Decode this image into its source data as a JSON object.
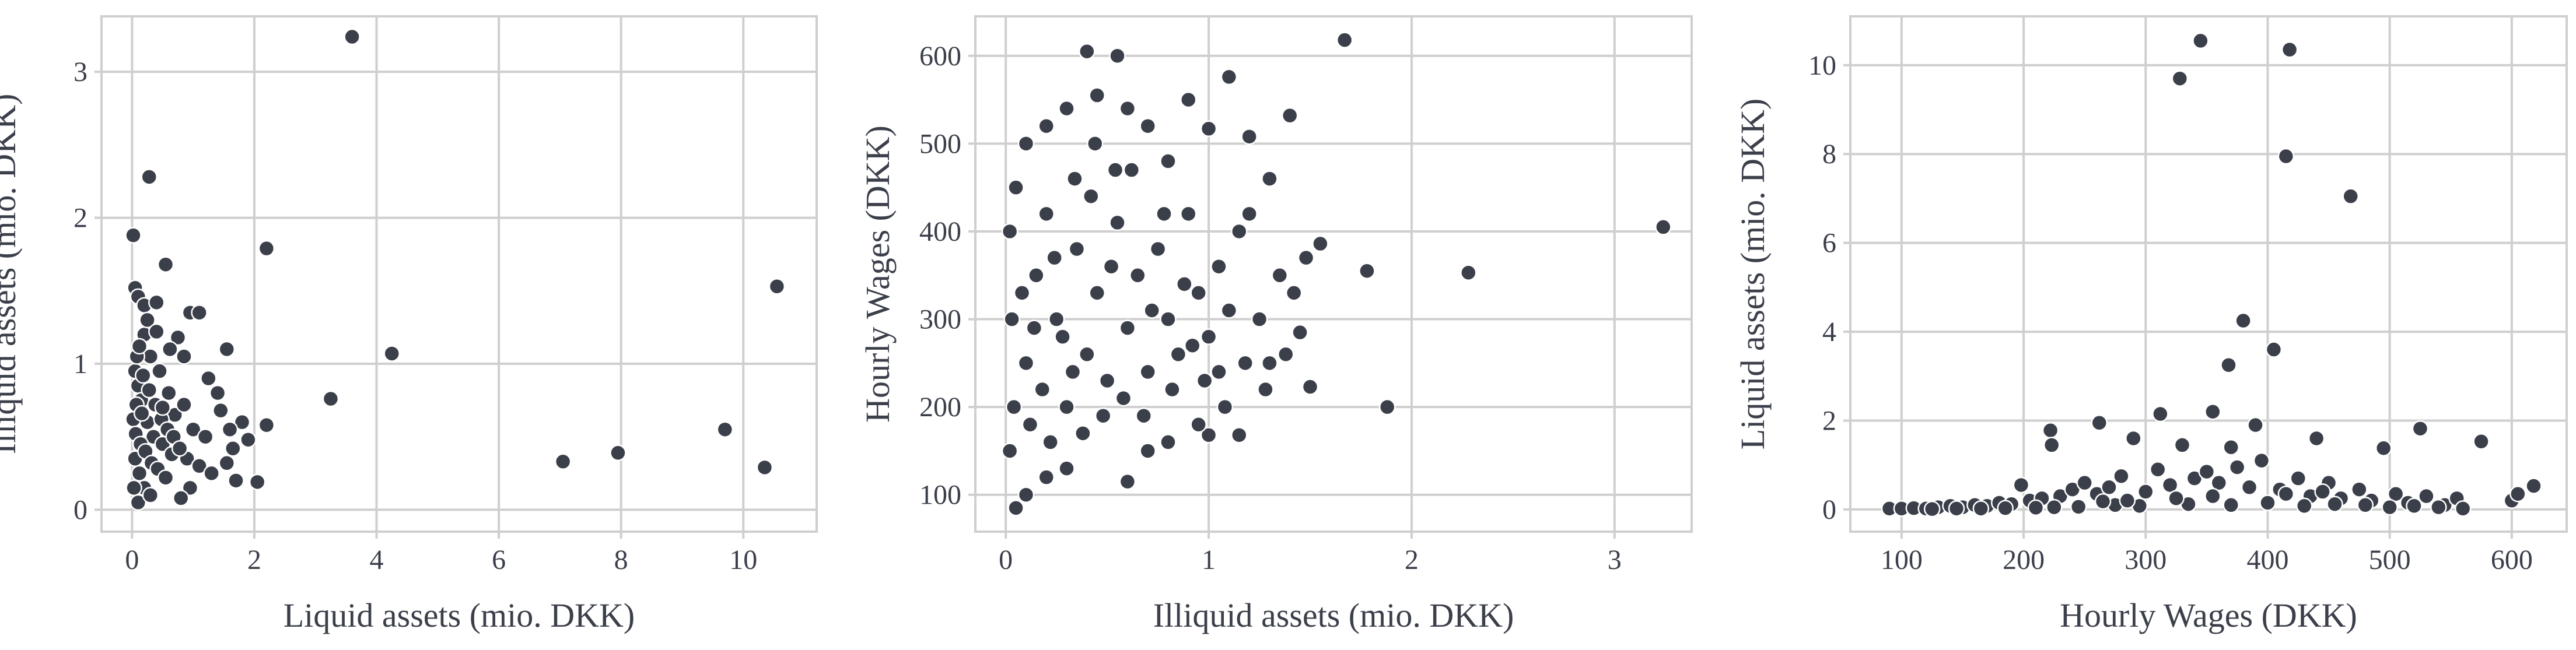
{
  "style": {
    "point_color": "#3b3f4a",
    "grid_color": "#cfcfcf"
  },
  "chart_data": [
    {
      "type": "scatter",
      "title": "",
      "xlabel": "Liquid assets (mio. DKK)",
      "ylabel": "Illiquid assets (mio. DKK)",
      "xlim": [
        -0.5,
        11.2
      ],
      "ylim": [
        -0.15,
        3.38
      ],
      "xticks": [
        0,
        2,
        4,
        6,
        8,
        10
      ],
      "yticks": [
        0,
        1,
        2,
        3
      ],
      "grid": true,
      "points": [
        [
          3.6,
          3.24
        ],
        [
          0.28,
          2.28
        ],
        [
          0.02,
          1.88
        ],
        [
          2.2,
          1.79
        ],
        [
          0.55,
          1.68
        ],
        [
          10.55,
          1.53
        ],
        [
          0.95,
          1.35
        ],
        [
          1.1,
          1.35
        ],
        [
          1.55,
          1.1
        ],
        [
          4.25,
          1.07
        ],
        [
          3.25,
          0.76
        ],
        [
          9.7,
          0.55
        ],
        [
          7.95,
          0.39
        ],
        [
          7.05,
          0.33
        ],
        [
          10.35,
          0.29
        ],
        [
          2.05,
          0.19
        ],
        [
          0.05,
          1.52
        ],
        [
          0.1,
          1.46
        ],
        [
          0.2,
          1.4
        ],
        [
          0.4,
          1.42
        ],
        [
          0.75,
          1.18
        ],
        [
          0.85,
          1.05
        ],
        [
          1.25,
          0.9
        ],
        [
          1.4,
          0.8
        ],
        [
          1.8,
          0.6
        ],
        [
          2.2,
          0.58
        ],
        [
          1.65,
          0.42
        ],
        [
          1.9,
          0.48
        ],
        [
          1.55,
          0.32
        ],
        [
          1.7,
          0.2
        ],
        [
          0.95,
          0.15
        ],
        [
          0.8,
          0.08
        ],
        [
          0.1,
          0.05
        ],
        [
          0.2,
          1.2
        ],
        [
          0.3,
          1.05
        ],
        [
          0.45,
          0.95
        ],
        [
          0.6,
          0.8
        ],
        [
          0.7,
          0.65
        ],
        [
          0.05,
          0.95
        ],
        [
          0.1,
          0.85
        ],
        [
          0.15,
          0.75
        ],
        [
          0.25,
          0.6
        ],
        [
          0.35,
          0.5
        ],
        [
          0.5,
          0.45
        ],
        [
          0.65,
          0.38
        ],
        [
          0.9,
          0.35
        ],
        [
          1.1,
          0.3
        ],
        [
          1.3,
          0.25
        ],
        [
          0.05,
          0.35
        ],
        [
          0.12,
          0.25
        ],
        [
          0.2,
          0.15
        ],
        [
          0.3,
          0.1
        ],
        [
          0.08,
          1.05
        ],
        [
          0.18,
          0.92
        ],
        [
          0.28,
          0.82
        ],
        [
          0.38,
          0.72
        ],
        [
          0.48,
          0.62
        ],
        [
          0.58,
          0.55
        ],
        [
          0.68,
          0.5
        ],
        [
          0.78,
          0.42
        ],
        [
          0.02,
          0.62
        ],
        [
          0.06,
          0.52
        ],
        [
          0.14,
          0.45
        ],
        [
          0.22,
          0.4
        ],
        [
          0.32,
          0.32
        ],
        [
          0.42,
          0.28
        ],
        [
          0.55,
          0.22
        ],
        [
          0.03,
          0.15
        ],
        [
          0.07,
          0.72
        ],
        [
          0.16,
          0.66
        ],
        [
          1.0,
          0.55
        ],
        [
          1.2,
          0.5
        ],
        [
          1.45,
          0.68
        ],
        [
          1.6,
          0.55
        ],
        [
          0.25,
          1.3
        ],
        [
          0.12,
          1.12
        ],
        [
          0.62,
          1.1
        ],
        [
          0.4,
          1.22
        ],
        [
          0.5,
          0.7
        ],
        [
          0.85,
          0.72
        ]
      ]
    },
    {
      "type": "scatter",
      "title": "",
      "xlabel": "Illiquid assets (mio. DKK)",
      "ylabel": "Hourly Wages (DKK)",
      "xlim": [
        -0.15,
        3.38
      ],
      "ylim": [
        58,
        645
      ],
      "xticks": [
        0,
        1,
        2,
        3
      ],
      "yticks": [
        100,
        200,
        300,
        400,
        500,
        600
      ],
      "grid": true,
      "points": [
        [
          1.67,
          618
        ],
        [
          0.4,
          605
        ],
        [
          0.55,
          600
        ],
        [
          1.1,
          576
        ],
        [
          0.9,
          550
        ],
        [
          1.4,
          532
        ],
        [
          1.0,
          517
        ],
        [
          1.2,
          508
        ],
        [
          3.24,
          405
        ],
        [
          1.55,
          386
        ],
        [
          1.78,
          355
        ],
        [
          2.28,
          353
        ],
        [
          1.88,
          200
        ],
        [
          1.45,
          285
        ],
        [
          1.5,
          223
        ],
        [
          1.15,
          168
        ],
        [
          1.0,
          168
        ],
        [
          0.05,
          85
        ],
        [
          0.1,
          100
        ],
        [
          0.2,
          120
        ],
        [
          0.3,
          130
        ],
        [
          0.6,
          115
        ],
        [
          0.7,
          150
        ],
        [
          0.8,
          160
        ],
        [
          0.95,
          180
        ],
        [
          1.05,
          240
        ],
        [
          1.3,
          250
        ],
        [
          1.25,
          300
        ],
        [
          1.35,
          350
        ],
        [
          1.2,
          420
        ],
        [
          1.3,
          460
        ],
        [
          0.8,
          480
        ],
        [
          0.7,
          520
        ],
        [
          0.6,
          540
        ],
        [
          0.45,
          555
        ],
        [
          0.3,
          540
        ],
        [
          0.2,
          520
        ],
        [
          0.1,
          500
        ],
        [
          0.05,
          450
        ],
        [
          0.02,
          400
        ],
        [
          0.03,
          300
        ],
        [
          0.04,
          200
        ],
        [
          0.02,
          150
        ],
        [
          0.1,
          250
        ],
        [
          0.15,
          350
        ],
        [
          0.2,
          420
        ],
        [
          0.25,
          300
        ],
        [
          0.3,
          200
        ],
        [
          0.35,
          380
        ],
        [
          0.4,
          260
        ],
        [
          0.45,
          330
        ],
        [
          0.5,
          230
        ],
        [
          0.55,
          410
        ],
        [
          0.6,
          290
        ],
        [
          0.65,
          350
        ],
        [
          0.7,
          240
        ],
        [
          0.75,
          380
        ],
        [
          0.8,
          300
        ],
        [
          0.85,
          260
        ],
        [
          0.9,
          420
        ],
        [
          0.95,
          330
        ],
        [
          1.0,
          280
        ],
        [
          1.05,
          360
        ],
        [
          1.1,
          310
        ],
        [
          1.15,
          400
        ],
        [
          0.12,
          180
        ],
        [
          0.18,
          220
        ],
        [
          0.22,
          160
        ],
        [
          0.28,
          280
        ],
        [
          0.33,
          240
        ],
        [
          0.38,
          170
        ],
        [
          0.42,
          440
        ],
        [
          0.48,
          190
        ],
        [
          0.52,
          360
        ],
        [
          0.58,
          210
        ],
        [
          0.62,
          470
        ],
        [
          0.68,
          190
        ],
        [
          0.72,
          310
        ],
        [
          0.78,
          420
        ],
        [
          0.82,
          220
        ],
        [
          0.88,
          340
        ],
        [
          0.92,
          270
        ],
        [
          0.98,
          230
        ],
        [
          1.08,
          200
        ],
        [
          1.18,
          250
        ],
        [
          1.28,
          220
        ],
        [
          1.38,
          260
        ],
        [
          1.42,
          330
        ],
        [
          1.48,
          370
        ],
        [
          0.08,
          330
        ],
        [
          0.14,
          290
        ],
        [
          0.24,
          370
        ],
        [
          0.34,
          460
        ],
        [
          0.44,
          500
        ],
        [
          0.54,
          470
        ]
      ]
    },
    {
      "type": "scatter",
      "title": "",
      "xlabel": "Hourly Wages (DKK)",
      "ylabel": "Liquid assets (mio. DKK)",
      "xlim": [
        58,
        645
      ],
      "ylim": [
        -0.5,
        11.1
      ],
      "xticks": [
        100,
        200,
        300,
        400,
        500,
        600
      ],
      "yticks": [
        0,
        2,
        4,
        6,
        8,
        10
      ],
      "grid": true,
      "points": [
        [
          345,
          10.55
        ],
        [
          418,
          10.35
        ],
        [
          328,
          9.7
        ],
        [
          415,
          7.95
        ],
        [
          468,
          7.05
        ],
        [
          380,
          4.25
        ],
        [
          368,
          3.25
        ],
        [
          405,
          3.6
        ],
        [
          355,
          2.2
        ],
        [
          312,
          2.15
        ],
        [
          525,
          1.82
        ],
        [
          222,
          1.78
        ],
        [
          262,
          1.95
        ],
        [
          575,
          1.53
        ],
        [
          440,
          1.6
        ],
        [
          495,
          1.38
        ],
        [
          223,
          1.45
        ],
        [
          290,
          1.6
        ],
        [
          330,
          1.45
        ],
        [
          370,
          1.4
        ],
        [
          390,
          1.9
        ],
        [
          600,
          0.2
        ],
        [
          618,
          0.53
        ],
        [
          605,
          0.35
        ],
        [
          90,
          0.02
        ],
        [
          100,
          0.02
        ],
        [
          110,
          0.03
        ],
        [
          120,
          0.02
        ],
        [
          130,
          0.05
        ],
        [
          140,
          0.08
        ],
        [
          150,
          0.05
        ],
        [
          160,
          0.1
        ],
        [
          170,
          0.08
        ],
        [
          180,
          0.15
        ],
        [
          190,
          0.12
        ],
        [
          198,
          0.55
        ],
        [
          205,
          0.2
        ],
        [
          215,
          0.25
        ],
        [
          230,
          0.3
        ],
        [
          240,
          0.45
        ],
        [
          250,
          0.6
        ],
        [
          260,
          0.35
        ],
        [
          270,
          0.5
        ],
        [
          280,
          0.75
        ],
        [
          300,
          0.4
        ],
        [
          310,
          0.9
        ],
        [
          320,
          0.55
        ],
        [
          340,
          0.7
        ],
        [
          350,
          0.85
        ],
        [
          360,
          0.6
        ],
        [
          375,
          0.95
        ],
        [
          385,
          0.5
        ],
        [
          395,
          1.1
        ],
        [
          410,
          0.45
        ],
        [
          425,
          0.7
        ],
        [
          435,
          0.3
        ],
        [
          450,
          0.6
        ],
        [
          460,
          0.25
        ],
        [
          475,
          0.45
        ],
        [
          485,
          0.2
        ],
        [
          505,
          0.35
        ],
        [
          515,
          0.15
        ],
        [
          530,
          0.3
        ],
        [
          545,
          0.1
        ],
        [
          555,
          0.25
        ],
        [
          560,
          0.02
        ],
        [
          540,
          0.05
        ],
        [
          520,
          0.08
        ],
        [
          500,
          0.05
        ],
        [
          480,
          0.1
        ],
        [
          455,
          0.12
        ],
        [
          430,
          0.08
        ],
        [
          400,
          0.15
        ],
        [
          370,
          0.1
        ],
        [
          335,
          0.12
        ],
        [
          295,
          0.08
        ],
        [
          275,
          0.1
        ],
        [
          245,
          0.06
        ],
        [
          225,
          0.05
        ],
        [
          210,
          0.04
        ],
        [
          185,
          0.03
        ],
        [
          165,
          0.02
        ],
        [
          145,
          0.02
        ],
        [
          125,
          0.01
        ],
        [
          355,
          0.3
        ],
        [
          325,
          0.25
        ],
        [
          285,
          0.2
        ],
        [
          265,
          0.18
        ],
        [
          415,
          0.35
        ],
        [
          445,
          0.4
        ]
      ]
    }
  ]
}
